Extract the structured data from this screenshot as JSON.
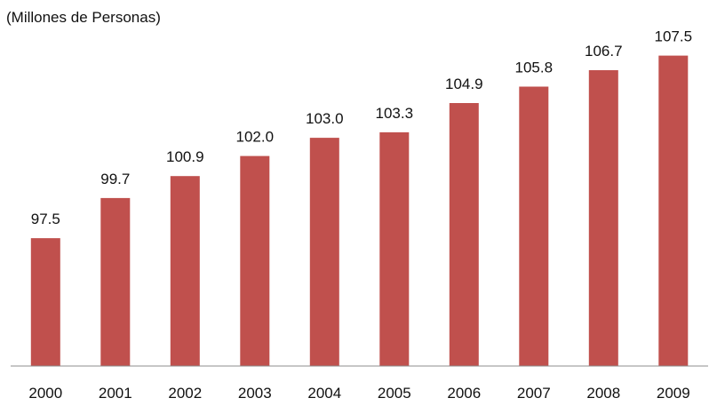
{
  "chart_data": {
    "type": "bar",
    "title": "",
    "unit_label": "(Millones de Personas)",
    "xlabel": "",
    "ylabel": "",
    "categories": [
      "2000",
      "2001",
      "2002",
      "2003",
      "2004",
      "2005",
      "2006",
      "2007",
      "2008",
      "2009"
    ],
    "values": [
      97.5,
      99.7,
      100.9,
      102.0,
      103.0,
      103.3,
      104.9,
      105.8,
      106.7,
      107.5
    ],
    "value_labels": [
      "97.5",
      "99.7",
      "100.9",
      "102.0",
      "103.0",
      "103.3",
      "104.9",
      "105.8",
      "106.7",
      "107.5"
    ],
    "ylim": [
      90.5,
      108.5
    ],
    "grid": false,
    "legend": "none",
    "bar_color": "#c0504d",
    "axis_color": "#8c8c8c",
    "text_color": "#111111"
  }
}
